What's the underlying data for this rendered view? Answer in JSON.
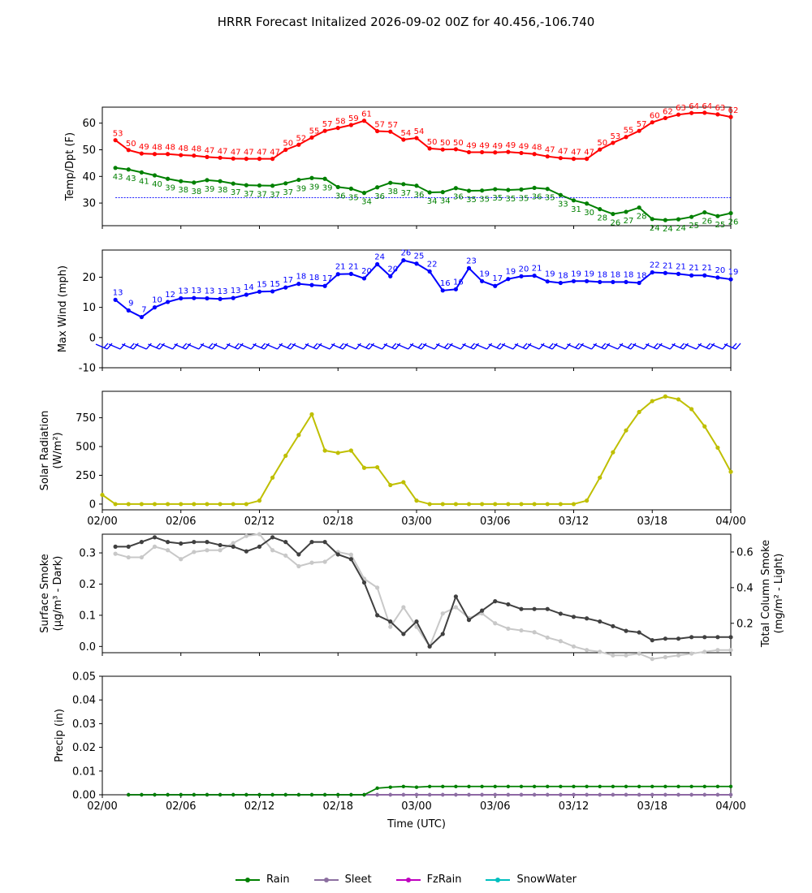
{
  "figure": {
    "title": "HRRR Forecast Initalized 2026-09-02 00Z for 40.456,-106.740",
    "xlabel": "Time (UTC)",
    "x_ticks": [
      "02/00",
      "02/06",
      "02/12",
      "02/18",
      "03/00",
      "03/06",
      "03/12",
      "03/18",
      "04/00"
    ]
  },
  "colors": {
    "temp": "#ff0000",
    "dewpoint": "#008000",
    "wind": "#0000ff",
    "solar": "#bfbf00",
    "smoke_dark": "#404040",
    "smoke_light": "#c8c8c8",
    "freezing_line": "#0000ff"
  },
  "chart_data": [
    {
      "type": "line",
      "id": "temp",
      "ylabel": "Temp/Dpt (F)",
      "x_range_hours": [
        0,
        48
      ],
      "x": [
        1,
        2,
        3,
        4,
        5,
        6,
        7,
        8,
        9,
        10,
        11,
        12,
        13,
        14,
        15,
        16,
        17,
        18,
        19,
        20,
        21,
        22,
        23,
        24,
        25,
        26,
        27,
        28,
        29,
        30,
        31,
        32,
        33,
        34,
        35,
        36,
        37,
        38,
        39,
        40,
        41,
        42,
        43,
        44,
        45,
        46,
        47,
        48
      ],
      "ylim": [
        21.5,
        66
      ],
      "yticks": [
        30,
        40,
        50,
        60
      ],
      "series": [
        {
          "name": "Temp",
          "values": [
            53,
            50,
            49,
            48,
            48,
            48,
            48,
            47,
            47,
            47,
            47,
            47,
            47,
            50,
            52,
            55,
            57,
            58,
            59,
            61,
            57,
            57,
            54,
            54,
            50,
            50,
            50,
            49,
            49,
            49,
            49,
            49,
            48,
            47,
            47,
            47,
            47,
            50,
            53,
            55,
            57,
            60,
            62,
            63,
            64,
            64,
            63,
            62
          ],
          "exact": [
            53.6,
            49.9,
            48.6,
            48.4,
            48.4,
            48.0,
            47.8,
            47.3,
            47.0,
            46.7,
            46.6,
            46.6,
            46.6,
            50.0,
            51.9,
            54.6,
            57.1,
            58.2,
            59.3,
            60.9,
            57.0,
            56.8,
            53.8,
            54.4,
            50.5,
            50.1,
            50.2,
            49.1,
            49.1,
            49.0,
            49.2,
            48.8,
            48.4,
            47.5,
            46.9,
            46.6,
            46.6,
            50.1,
            52.6,
            54.8,
            57.1,
            60.3,
            61.9,
            63.2,
            63.8,
            63.9,
            63.3,
            62.3
          ]
        },
        {
          "name": "Dewpoint",
          "values": [
            43,
            43,
            41,
            40,
            39,
            38,
            38,
            39,
            38,
            37,
            37,
            37,
            37,
            37,
            39,
            39,
            39,
            36,
            35,
            34,
            36,
            38,
            37,
            36,
            34,
            34,
            36,
            35,
            35,
            35,
            35,
            35,
            36,
            35,
            33,
            31,
            30,
            28,
            26,
            27,
            28,
            24,
            24,
            24,
            25,
            26,
            25,
            26
          ],
          "exact": [
            43.2,
            42.6,
            41.5,
            40.4,
            39.1,
            38.2,
            37.7,
            38.6,
            38.2,
            37.3,
            36.7,
            36.6,
            36.5,
            37.4,
            38.7,
            39.4,
            39.1,
            36.0,
            35.4,
            33.8,
            35.9,
            37.6,
            37.1,
            36.5,
            34.0,
            34.1,
            35.6,
            34.6,
            34.7,
            35.2,
            34.9,
            35.1,
            35.7,
            35.3,
            33.0,
            31.0,
            29.8,
            27.7,
            25.9,
            26.7,
            28.3,
            24.0,
            23.6,
            23.9,
            24.8,
            26.5,
            25.1,
            26.2
          ]
        }
      ],
      "reference_line": 32
    },
    {
      "type": "line",
      "id": "wind",
      "ylabel": "Max Wind (mph)",
      "ylim": [
        -10,
        29
      ],
      "yticks": [
        -10,
        0,
        10,
        20
      ],
      "series": [
        {
          "name": "Max Wind",
          "values": [
            13,
            9,
            7,
            10,
            12,
            13,
            13,
            13,
            13,
            13,
            14,
            15,
            15,
            17,
            18,
            18,
            17,
            21,
            21,
            20,
            24,
            20,
            26,
            25,
            22,
            16,
            16,
            23,
            19,
            17,
            19,
            20,
            21,
            19,
            18,
            19,
            19,
            18,
            18,
            18,
            18,
            22,
            21,
            21,
            21,
            21,
            20,
            19
          ],
          "exact": [
            12.5,
            9.0,
            6.8,
            10.0,
            11.8,
            13.0,
            13.1,
            13.0,
            12.8,
            13.1,
            14.2,
            15.2,
            15.3,
            16.6,
            17.8,
            17.4,
            17.1,
            21.0,
            21.1,
            19.6,
            24.3,
            20.3,
            25.6,
            24.5,
            21.9,
            15.6,
            16.0,
            23.0,
            18.7,
            17.1,
            19.4,
            20.3,
            20.5,
            18.6,
            18.1,
            18.7,
            18.7,
            18.4,
            18.4,
            18.4,
            18.1,
            21.6,
            21.4,
            21.1,
            20.6,
            20.6,
            19.9,
            19.3
          ]
        }
      ],
      "barbs_at": -3
    },
    {
      "type": "line",
      "id": "solar",
      "ylabel": [
        "Solar Radiation",
        "(W/m²)"
      ],
      "ylim": [
        -50,
        980
      ],
      "yticks": [
        0,
        250,
        500,
        750
      ],
      "series": [
        {
          "name": "Solar Radiation",
          "values": [
            80,
            0,
            0,
            0,
            0,
            0,
            0,
            0,
            0,
            0,
            0,
            0,
            30,
            230,
            420,
            600,
            780,
            465,
            445,
            465,
            315,
            320,
            165,
            190,
            30,
            0,
            0,
            0,
            0,
            0,
            0,
            0,
            0,
            0,
            0,
            0,
            0,
            30,
            230,
            450,
            640,
            800,
            895,
            935,
            910,
            825,
            675,
            490,
            280
          ]
        }
      ]
    },
    {
      "type": "line",
      "id": "smoke",
      "ylabel": [
        "Surface Smoke",
        "(μg/m³ - Dark)"
      ],
      "ylabel_right": [
        "Total Column Smoke",
        "(mg/m² - Light)"
      ],
      "ylim": [
        -0.02,
        0.36
      ],
      "yticks": [
        0.0,
        0.1,
        0.2,
        0.3
      ],
      "ylim_right": [
        0.035,
        0.7
      ],
      "yticks_right": [
        0.2,
        0.4,
        0.6
      ],
      "series": [
        {
          "name": "Surface Smoke",
          "axis": "left",
          "values": [
            0.32,
            0.32,
            0.335,
            0.35,
            0.335,
            0.33,
            0.335,
            0.335,
            0.325,
            0.32,
            0.305,
            0.32,
            0.35,
            0.335,
            0.295,
            0.335,
            0.335,
            0.295,
            0.28,
            0.205,
            0.1,
            0.08,
            0.04,
            0.08,
            0.0,
            0.04,
            0.16,
            0.085,
            0.115,
            0.145,
            0.135,
            0.12,
            0.12,
            0.12,
            0.105,
            0.095,
            0.09,
            0.08,
            0.065,
            0.05,
            0.045,
            0.02,
            0.025,
            0.025,
            0.03,
            0.03,
            0.03,
            0.03
          ]
        },
        {
          "name": "Total Column Smoke",
          "axis": "right",
          "values": [
            0.59,
            0.57,
            0.57,
            0.63,
            0.61,
            0.56,
            0.6,
            0.61,
            0.61,
            0.65,
            0.69,
            0.7,
            0.61,
            0.58,
            0.52,
            0.54,
            0.545,
            0.6,
            0.585,
            0.45,
            0.4,
            0.18,
            0.29,
            0.18,
            0.07,
            0.255,
            0.29,
            0.23,
            0.255,
            0.2,
            0.17,
            0.16,
            0.15,
            0.12,
            0.1,
            0.07,
            0.05,
            0.04,
            0.02,
            0.02,
            0.03,
            0.0,
            0.01,
            0.02,
            0.03,
            0.04,
            0.05,
            0.05
          ]
        }
      ]
    },
    {
      "type": "line",
      "id": "precip",
      "ylabel": "Precip (in)",
      "ylim": [
        0,
        0.05
      ],
      "yticks": [
        "0.00",
        "0.01",
        "0.02",
        "0.03",
        "0.04",
        "0.05"
      ],
      "series": [
        {
          "name": "Rain",
          "values": [
            0,
            0,
            0,
            0,
            0,
            0,
            0,
            0,
            0,
            0,
            0,
            0,
            0,
            0,
            0,
            0,
            0,
            0,
            0,
            0.0028,
            0.0032,
            0.0035,
            0.0032,
            0.0035,
            0.0035,
            0.0035,
            0.0035,
            0.0035,
            0.0035,
            0.0035,
            0.0035,
            0.0035,
            0.0035,
            0.0035,
            0.0035,
            0.0035,
            0.0035,
            0.0035,
            0.0035,
            0.0035,
            0.0035,
            0.0035,
            0.0035,
            0.0035,
            0.0035,
            0.0035,
            0.0035
          ]
        },
        {
          "name": "Sleet",
          "values": [
            0,
            0,
            0,
            0,
            0,
            0,
            0,
            0,
            0,
            0,
            0,
            0,
            0,
            0,
            0,
            0,
            0,
            0,
            0,
            0,
            0,
            0,
            0,
            0,
            0,
            0,
            0,
            0,
            0,
            0,
            0,
            0,
            0,
            0,
            0,
            0,
            0,
            0,
            0,
            0,
            0,
            0,
            0,
            0,
            0,
            0,
            0
          ]
        },
        {
          "name": "FzRain",
          "values": [
            0,
            0,
            0,
            0,
            0,
            0,
            0,
            0,
            0,
            0,
            0,
            0,
            0,
            0,
            0,
            0,
            0,
            0,
            0,
            0,
            0,
            0,
            0,
            0,
            0,
            0,
            0,
            0,
            0,
            0,
            0,
            0,
            0,
            0,
            0,
            0,
            0,
            0,
            0,
            0,
            0,
            0,
            0,
            0,
            0,
            0,
            0
          ]
        },
        {
          "name": "SnowWater",
          "values": [
            0,
            0,
            0,
            0,
            0,
            0,
            0,
            0,
            0,
            0,
            0,
            0,
            0,
            0,
            0,
            0,
            0,
            0,
            0,
            0,
            0,
            0,
            0,
            0,
            0,
            0,
            0,
            0,
            0,
            0,
            0,
            0,
            0,
            0,
            0,
            0,
            0,
            0,
            0,
            0,
            0,
            0,
            0,
            0,
            0,
            0,
            0
          ]
        }
      ]
    }
  ],
  "legend": [
    {
      "label": "Rain",
      "color": "#008000"
    },
    {
      "label": "Sleet",
      "color": "#8c6fa0"
    },
    {
      "label": "FzRain",
      "color": "#bf00bf"
    },
    {
      "label": "SnowWater",
      "color": "#00bfbf"
    }
  ]
}
